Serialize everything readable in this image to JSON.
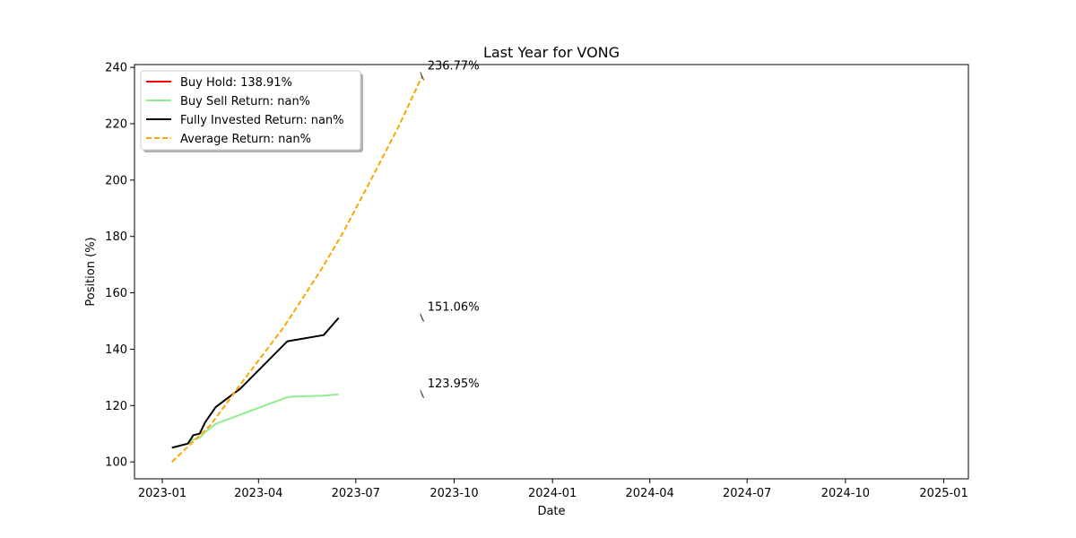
{
  "chart_data": {
    "type": "line",
    "title": "Last Year for VONG",
    "xlabel": "Date",
    "ylabel": "Position (%)",
    "xlim": [
      "2022-12-06",
      "2025-01-24"
    ],
    "ylim": [
      94,
      241
    ],
    "x_ticks": [
      "2023-01",
      "2023-04",
      "2023-07",
      "2023-10",
      "2024-01",
      "2024-04",
      "2024-07",
      "2024-10",
      "2025-01"
    ],
    "y_ticks": [
      100,
      120,
      140,
      160,
      180,
      200,
      220,
      240
    ],
    "grid": false,
    "legend_position": "top-left",
    "series": [
      {
        "name": "Buy Hold: 138.91%",
        "color": "#ff0000",
        "dash": "solid",
        "x": [],
        "values": []
      },
      {
        "name": "Buy Sell Return: nan%",
        "color": "#90ee90",
        "dash": "solid",
        "x": [
          "2023-01-10",
          "2023-01-25",
          "2023-01-30",
          "2023-02-05",
          "2023-02-10",
          "2023-02-20",
          "2023-04-28",
          "2023-05-05",
          "2023-06-01",
          "2023-06-15"
        ],
        "values": [
          105.0,
          106.5,
          108.0,
          108.5,
          110.5,
          113.5,
          123.0,
          123.2,
          123.5,
          124.0
        ]
      },
      {
        "name": "Fully Invested Return: nan%",
        "color": "#000000",
        "dash": "solid",
        "x": [
          "2023-01-10",
          "2023-01-25",
          "2023-01-30",
          "2023-02-05",
          "2023-02-10",
          "2023-02-20",
          "2023-03-15",
          "2023-04-28",
          "2023-06-01",
          "2023-06-15"
        ],
        "values": [
          105.0,
          106.5,
          109.5,
          110.0,
          114.0,
          119.5,
          126.0,
          142.8,
          145.0,
          151.1
        ]
      },
      {
        "name": "Average Return: nan%",
        "color": "#ffa500",
        "dash": "dashed",
        "x": [
          "2023-01-10",
          "2023-02-15",
          "2023-03-20",
          "2023-04-25",
          "2023-05-30",
          "2023-06-20",
          "2023-07-15",
          "2023-08-10",
          "2023-09-01"
        ],
        "values": [
          100.0,
          113.0,
          130.0,
          148.0,
          168.5,
          182.0,
          200.0,
          219.0,
          236.8
        ]
      }
    ],
    "annotations": [
      {
        "text": "236.77%",
        "x": "2023-09-01",
        "y": 236.77
      },
      {
        "text": "151.06%",
        "x": "2023-09-01",
        "y": 151.06
      },
      {
        "text": "123.95%",
        "x": "2023-09-01",
        "y": 123.95
      }
    ]
  }
}
